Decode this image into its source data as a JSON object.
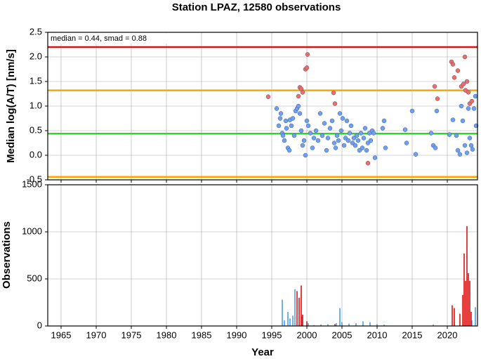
{
  "chart_data": [
    {
      "type": "scatter",
      "title": "Station LPAZ, 12580 observations",
      "ylabel": "Median log(A/T) [nm/s]",
      "annotation": "median = 0.44, smad = 0.88",
      "xlim": [
        1963.1,
        2024.3
      ],
      "xticks": [
        1965,
        1970,
        1975,
        1980,
        1985,
        1990,
        1995,
        2000,
        2005,
        2010,
        2015,
        2020
      ],
      "ylim": [
        -0.5,
        2.5
      ],
      "yticks": [
        -0.5,
        {
          "value": 0,
          "label": "0.0"
        },
        0.5,
        {
          "value": 1,
          "label": "1.0"
        },
        1.5,
        {
          "value": 2,
          "label": "2.0"
        },
        2.5
      ],
      "grid": true,
      "hlines": [
        {
          "value": 2.2,
          "color": "#dd1111"
        },
        {
          "value": 1.32,
          "color": "#ffa500"
        },
        {
          "value": 0.44,
          "color": "#22dd22"
        },
        {
          "value": -0.44,
          "color": "#ffa500"
        }
      ],
      "series": [
        {
          "color": "#6fa0ef",
          "x": [
            1995.7,
            1996.0,
            1996.2,
            1996.3,
            1996.5,
            1996.6,
            1996.8,
            1997.0,
            1997.1,
            1997.3,
            1997.5,
            1997.6,
            1997.8,
            1998.0,
            1998.2,
            1998.4,
            1998.6,
            1998.8,
            1999.0,
            1999.2,
            1999.4,
            1999.6,
            1999.8,
            2000.0,
            2000.2,
            2000.5,
            2000.8,
            2001.0,
            2001.3,
            2001.6,
            2001.9,
            2002.2,
            2002.5,
            2002.8,
            2003.0,
            2003.3,
            2003.6,
            2003.9,
            2004.1,
            2004.3,
            2004.5,
            2004.7,
            2004.9,
            2005.1,
            2005.3,
            2005.5,
            2005.7,
            2005.9,
            2006.1,
            2006.3,
            2006.5,
            2006.7,
            2006.9,
            2007.1,
            2007.3,
            2007.5,
            2007.7,
            2007.9,
            2008.1,
            2008.3,
            2008.5,
            2008.7,
            2008.9,
            2009.1,
            2009.3,
            2009.5,
            2009.7,
            2010.8,
            2011.0,
            2011.2,
            2014.0,
            2014.2,
            2015.0,
            2015.5,
            2017.7,
            2018.0,
            2018.3,
            2018.5,
            2020.3,
            2020.8,
            2021.3,
            2021.5,
            2021.8,
            2022.0,
            2022.2,
            2022.5,
            2022.8,
            2023.0,
            2023.2,
            2023.4,
            2023.6,
            2023.8,
            2024.0,
            2024.1
          ],
          "values": [
            0.95,
            0.6,
            0.75,
            0.85,
            0.45,
            0.4,
            0.3,
            0.7,
            0.55,
            0.15,
            0.1,
            0.72,
            0.6,
            0.75,
            0.4,
            0.9,
            0.95,
            1.0,
            0.85,
            0.5,
            0.2,
            0.3,
            0.0,
            0.7,
            0.6,
            0.45,
            0.15,
            0.35,
            0.5,
            0.3,
            0.85,
            0.4,
            0.65,
            0.1,
            0.35,
            0.55,
            0.7,
            0.25,
            0.15,
            0.4,
            0.3,
            0.85,
            0.5,
            0.75,
            0.2,
            0.35,
            0.7,
            0.3,
            0.45,
            0.6,
            0.25,
            0.35,
            0.2,
            0.4,
            0.3,
            0.1,
            0.45,
            0.15,
            0.35,
            0.55,
            0.1,
            0.25,
            0.45,
            0.3,
            0.5,
            0.45,
            -0.05,
            0.55,
            0.7,
            0.15,
            0.52,
            0.25,
            0.9,
            0.02,
            0.45,
            0.2,
            0.15,
            0.9,
            0.42,
            0.72,
            0.4,
            0.1,
            0.02,
            1.0,
            0.7,
            0.2,
            0.05,
            0.95,
            0.35,
            0.2,
            0.12,
            0.95,
            1.2,
            0.6
          ]
        },
        {
          "color": "#f86a5a",
          "x": [
            1994.5,
            1998.8,
            1999.0,
            1999.2,
            1999.4,
            1999.8,
            2000.0,
            2000.1,
            2003.8,
            2004.0,
            2008.7,
            2018.2,
            2018.6,
            2020.6,
            2020.8,
            2021.0,
            2021.5,
            2022.0,
            2022.3,
            2022.5,
            2022.6,
            2022.8,
            2023.0,
            2023.2,
            2023.5
          ],
          "values": [
            1.19,
            1.2,
            1.38,
            1.35,
            1.28,
            1.75,
            1.78,
            2.05,
            1.27,
            1.05,
            -0.16,
            1.4,
            1.15,
            1.9,
            1.85,
            1.58,
            1.72,
            1.4,
            1.45,
            2.0,
            1.32,
            1.5,
            1.28,
            1.05,
            1.1
          ]
        }
      ]
    },
    {
      "type": "histogram",
      "xlabel": "Year",
      "ylabel": "Observations",
      "xlim": [
        1963.1,
        2024.3
      ],
      "xticks": [
        1965,
        1970,
        1975,
        1980,
        1985,
        1990,
        1995,
        2000,
        2005,
        2010,
        2015,
        2020
      ],
      "ylim": [
        0,
        1500
      ],
      "yticks": [
        0,
        500,
        1000,
        1500
      ],
      "grid": true,
      "series": [
        {
          "color": "#4a9ee6",
          "x": [
            1996.5,
            1996.8,
            1997.3,
            1997.6,
            1998.0,
            1998.3,
            1999.3,
            2000.2,
            2001.0,
            2002.0,
            2003.0,
            2004.2,
            2004.7,
            2005.0,
            2006.0,
            2007.0,
            2008.0,
            2009.0,
            2010.0,
            2011.0,
            2015.0,
            2018.0,
            2021.0,
            2023.5,
            2024.0
          ],
          "values": [
            280,
            60,
            150,
            80,
            110,
            390,
            100,
            30,
            10,
            15,
            20,
            30,
            190,
            40,
            25,
            30,
            50,
            40,
            20,
            15,
            5,
            15,
            30,
            60,
            200
          ]
        },
        {
          "color": "#e01010",
          "x": [
            1998.6,
            1998.9,
            1999.2,
            1999.4,
            2000.0,
            2004.0,
            2020.7,
            2021.0,
            2021.8,
            2022.2,
            2022.4,
            2022.6,
            2022.8,
            2023.0,
            2023.2,
            2023.4
          ],
          "values": [
            370,
            300,
            430,
            120,
            50,
            20,
            220,
            190,
            130,
            330,
            770,
            480,
            1060,
            560,
            480,
            150
          ]
        }
      ]
    }
  ]
}
